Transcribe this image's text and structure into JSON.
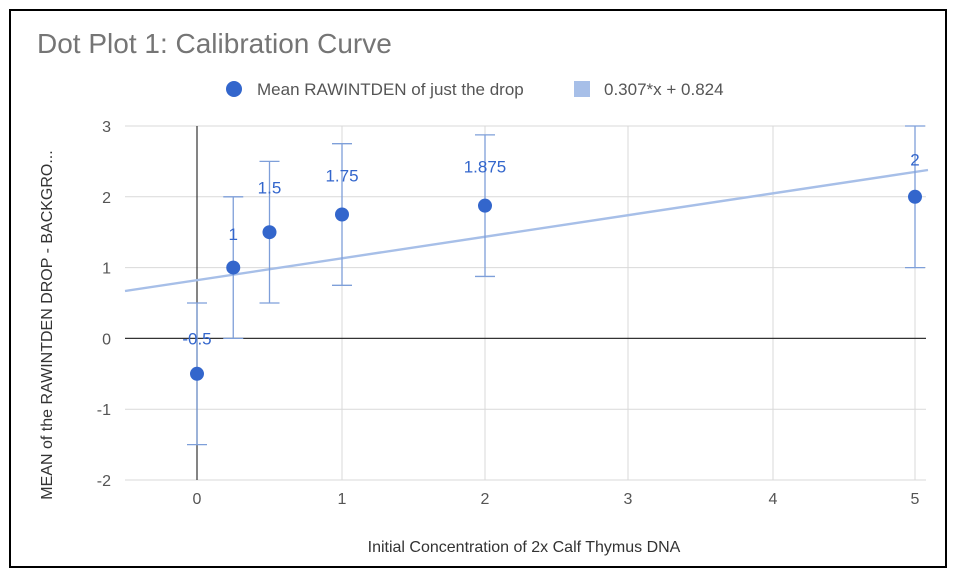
{
  "chart_data": {
    "type": "scatter",
    "title": "Dot Plot 1: Calibration Curve",
    "xlabel": "Initial Concentration of 2x Calf Thymus DNA",
    "ylabel": "MEAN of the RAWINTDEN DROP - BACKGRO...",
    "x_tick_labels": [
      "0",
      "1",
      "2",
      "3",
      "4",
      "5"
    ],
    "y_tick_labels": [
      "3",
      "2",
      "1",
      "0",
      "-1",
      "-2"
    ],
    "ylim": [
      -2,
      3
    ],
    "grid": true,
    "legend_position": "top",
    "series": [
      {
        "name": "Mean RAWINTDEN of just the drop",
        "color": "#3366cc",
        "points": [
          {
            "x": 0,
            "y": -0.5,
            "label": "-0.5",
            "err_low": -1.5,
            "err_high": 0.5
          },
          {
            "x": 0.25,
            "y": 1,
            "label": "1",
            "err_low": 0,
            "err_high": 2
          },
          {
            "x": 0.5,
            "y": 1.5,
            "label": "1.5",
            "err_low": 0.5,
            "err_high": 2.5
          },
          {
            "x": 1,
            "y": 1.75,
            "label": "1.75",
            "err_low": 0.75,
            "err_high": 2.75
          },
          {
            "x": 2,
            "y": 1.875,
            "label": "1.875",
            "err_low": 0.875,
            "err_high": 2.875
          },
          {
            "x": 5,
            "y": 2,
            "label": "2",
            "err_low": 1,
            "err_high": 3
          }
        ]
      }
    ],
    "trendline": {
      "name": "0.307*x + 0.824",
      "color": "#a7bfe8"
    }
  }
}
